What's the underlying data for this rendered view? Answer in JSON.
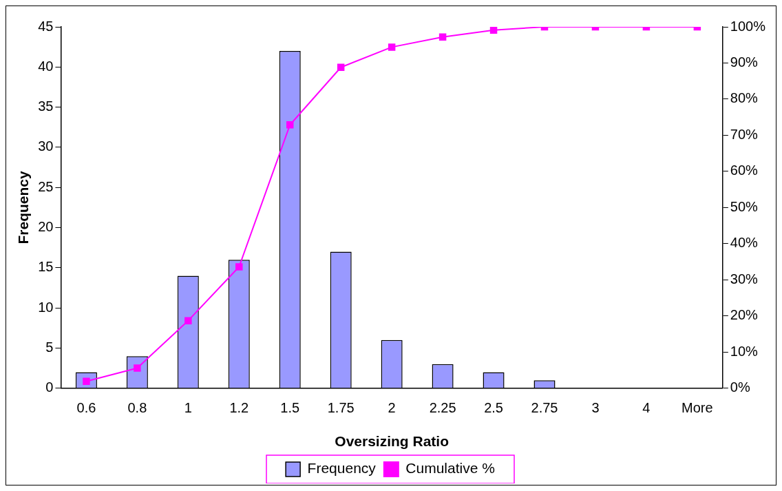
{
  "chart_data": {
    "type": "bar",
    "xlabel": "Oversizing Ratio",
    "ylabel": "Frequency",
    "categories": [
      "0.6",
      "0.8",
      "1",
      "1.2",
      "1.5",
      "1.75",
      "2",
      "2.25",
      "2.5",
      "2.75",
      "3",
      "4",
      "More"
    ],
    "series": [
      {
        "name": "Frequency",
        "color": "#9999ff",
        "values": [
          2,
          4,
          14,
          16,
          42,
          17,
          6,
          3,
          2,
          1,
          0,
          0,
          0
        ]
      },
      {
        "name": "Cumulative %",
        "type": "line",
        "axis": "y2",
        "color": "#ff00ff",
        "marker": "square",
        "values": [
          1.9,
          5.6,
          18.7,
          33.6,
          72.9,
          88.8,
          94.4,
          97.2,
          99.1,
          100,
          100,
          100,
          100
        ]
      }
    ],
    "ylim": [
      0,
      45
    ],
    "yticks": [
      0,
      5,
      10,
      15,
      20,
      25,
      30,
      35,
      40,
      45
    ],
    "y2lim": [
      0,
      100
    ],
    "y2ticks": [
      {
        "value": 0,
        "label": "0%"
      },
      {
        "value": 10,
        "label": "10%"
      },
      {
        "value": 20,
        "label": "20%"
      },
      {
        "value": 30,
        "label": "30%"
      },
      {
        "value": 40,
        "label": "40%"
      },
      {
        "value": 50,
        "label": "50%"
      },
      {
        "value": 60,
        "label": "60%"
      },
      {
        "value": 70,
        "label": "70%"
      },
      {
        "value": 80,
        "label": "80%"
      },
      {
        "value": 90,
        "label": "90%"
      },
      {
        "value": 100,
        "label": "100%"
      }
    ],
    "grid": false,
    "legend": "bottom"
  }
}
